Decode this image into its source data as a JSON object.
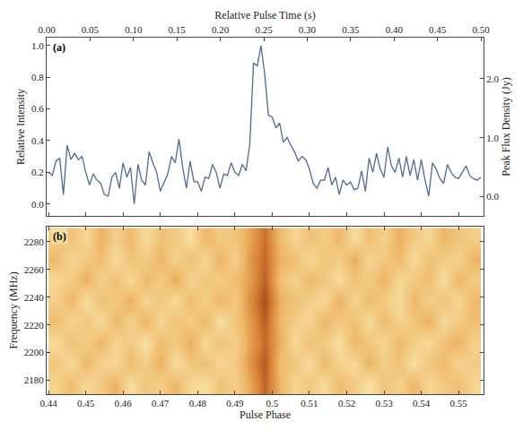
{
  "chart_data": [
    {
      "type": "line",
      "label": "(a)",
      "x_title": "Pulse Phase",
      "y_title": "Relative Intensity",
      "y2_title": "Peak Flux Density (Jy)",
      "top_title": "Relative Pulse Time (s)",
      "color": "#4e6a96",
      "x": [
        0.44,
        0.441,
        0.442,
        0.443,
        0.444,
        0.445,
        0.446,
        0.447,
        0.448,
        0.449,
        0.45,
        0.451,
        0.452,
        0.453,
        0.454,
        0.455,
        0.456,
        0.457,
        0.458,
        0.459,
        0.46,
        0.461,
        0.462,
        0.463,
        0.464,
        0.465,
        0.466,
        0.467,
        0.468,
        0.469,
        0.47,
        0.471,
        0.472,
        0.473,
        0.474,
        0.475,
        0.476,
        0.477,
        0.478,
        0.479,
        0.48,
        0.481,
        0.482,
        0.483,
        0.484,
        0.485,
        0.486,
        0.487,
        0.488,
        0.489,
        0.49,
        0.491,
        0.492,
        0.493,
        0.494,
        0.495,
        0.496,
        0.497,
        0.498,
        0.499,
        0.5,
        0.501,
        0.502,
        0.503,
        0.504,
        0.505,
        0.506,
        0.507,
        0.508,
        0.509,
        0.51,
        0.511,
        0.512,
        0.513,
        0.514,
        0.515,
        0.516,
        0.517,
        0.518,
        0.519,
        0.52,
        0.521,
        0.522,
        0.523,
        0.524,
        0.525,
        0.526,
        0.527,
        0.528,
        0.529,
        0.53,
        0.531,
        0.532,
        0.533,
        0.534,
        0.535,
        0.536,
        0.537,
        0.538,
        0.539,
        0.54,
        0.541,
        0.542,
        0.543,
        0.544,
        0.545,
        0.546,
        0.547,
        0.548,
        0.549,
        0.55,
        0.551,
        0.552,
        0.553,
        0.554,
        0.555,
        0.556
      ],
      "values": [
        0.2,
        0.18,
        0.27,
        0.29,
        0.06,
        0.37,
        0.28,
        0.32,
        0.28,
        0.3,
        0.2,
        0.12,
        0.19,
        0.15,
        0.13,
        0.06,
        0.05,
        0.17,
        0.2,
        0.1,
        0.26,
        0.17,
        0.23,
        0.0,
        0.25,
        0.15,
        0.12,
        0.33,
        0.26,
        0.2,
        0.08,
        0.13,
        0.19,
        0.3,
        0.26,
        0.41,
        0.23,
        0.1,
        0.27,
        0.14,
        0.14,
        0.08,
        0.17,
        0.16,
        0.25,
        0.2,
        0.1,
        0.19,
        0.18,
        0.26,
        0.2,
        0.18,
        0.25,
        0.21,
        0.38,
        0.89,
        0.87,
        1.0,
        0.82,
        0.56,
        0.55,
        0.48,
        0.51,
        0.39,
        0.42,
        0.37,
        0.33,
        0.27,
        0.3,
        0.28,
        0.22,
        0.13,
        0.1,
        0.15,
        0.15,
        0.23,
        0.12,
        0.17,
        0.06,
        0.15,
        0.12,
        0.14,
        0.09,
        0.1,
        0.21,
        0.08,
        0.29,
        0.2,
        0.32,
        0.22,
        0.17,
        0.36,
        0.24,
        0.2,
        0.29,
        0.17,
        0.3,
        0.18,
        0.28,
        0.15,
        0.28,
        0.15,
        0.05,
        0.26,
        0.22,
        0.16,
        0.13,
        0.25,
        0.2,
        0.17,
        0.16,
        0.2,
        0.24,
        0.18,
        0.16,
        0.15,
        0.17
      ],
      "xlim": [
        0.4395,
        0.5567
      ],
      "xticks": [
        0.44,
        0.45,
        0.46,
        0.47,
        0.48,
        0.49,
        0.5,
        0.51,
        0.52,
        0.53,
        0.54,
        0.55
      ],
      "ylim": [
        -0.075,
        1.05
      ],
      "yticks": [
        {
          "value": 0,
          "label": "0.0"
        },
        {
          "value": 0.2,
          "label": "0.2"
        },
        {
          "value": 0.4,
          "label": "0.4"
        },
        {
          "value": 0.6,
          "label": "0.6"
        },
        {
          "value": 0.8,
          "label": "0.8"
        },
        {
          "value": 1,
          "label": "1.0"
        }
      ],
      "y2lim": [
        -0.33,
        2.7
      ],
      "y2ticks": [
        {
          "value": 0,
          "label": "0.0"
        },
        {
          "value": 1,
          "label": "1.0"
        },
        {
          "value": 2,
          "label": "2.0"
        }
      ],
      "top_lim": [
        0,
        0.503
      ],
      "top_ticks": [
        {
          "value": 0,
          "label": "0.00"
        },
        {
          "value": 0.05,
          "label": "0.05"
        },
        {
          "value": 0.1,
          "label": "0.10"
        },
        {
          "value": 0.15,
          "label": "0.15"
        },
        {
          "value": 0.2,
          "label": "0.20"
        },
        {
          "value": 0.25,
          "label": "0.25"
        },
        {
          "value": 0.3,
          "label": "0.30"
        },
        {
          "value": 0.35,
          "label": "0.35"
        },
        {
          "value": 0.4,
          "label": "0.40"
        },
        {
          "value": 0.45,
          "label": "0.45"
        },
        {
          "value": 0.5,
          "label": "0.50"
        }
      ]
    },
    {
      "type": "heatmap",
      "label": "(b)",
      "x_title": "Pulse Phase",
      "y_title": "Frequency (MHz)",
      "x": [
        0.442,
        0.446,
        0.45,
        0.454,
        0.458,
        0.462,
        0.466,
        0.47,
        0.474,
        0.478,
        0.482,
        0.486,
        0.49,
        0.494,
        0.498,
        0.502,
        0.506,
        0.51,
        0.514,
        0.518,
        0.522,
        0.526,
        0.53,
        0.534,
        0.538,
        0.542,
        0.546,
        0.55,
        0.554
      ],
      "y": [
        2177.5,
        2192.5,
        2207.5,
        2222.5,
        2237.5,
        2252.5,
        2267.5,
        2282.5
      ],
      "z": [
        [
          0.42,
          0.55,
          0.38,
          0.47,
          0.6,
          0.35,
          0.5,
          0.44,
          0.58,
          0.4,
          0.36,
          0.52,
          0.45,
          0.62,
          0.82,
          0.58,
          0.41,
          0.49,
          0.37,
          0.55,
          0.46,
          0.33,
          0.51,
          0.43,
          0.59,
          0.39,
          0.48,
          0.54,
          0.4
        ],
        [
          0.5,
          0.37,
          0.58,
          0.43,
          0.39,
          0.56,
          0.44,
          0.61,
          0.35,
          0.49,
          0.53,
          0.4,
          0.47,
          0.68,
          0.85,
          0.55,
          0.5,
          0.36,
          0.57,
          0.42,
          0.38,
          0.6,
          0.45,
          0.52,
          0.34,
          0.5,
          0.56,
          0.41,
          0.47
        ],
        [
          0.36,
          0.52,
          0.45,
          0.59,
          0.41,
          0.48,
          0.33,
          0.55,
          0.47,
          0.62,
          0.38,
          0.51,
          0.44,
          0.64,
          0.8,
          0.61,
          0.39,
          0.53,
          0.46,
          0.35,
          0.58,
          0.49,
          0.4,
          0.57,
          0.45,
          0.37,
          0.52,
          0.6,
          0.43
        ],
        [
          0.55,
          0.41,
          0.49,
          0.36,
          0.57,
          0.43,
          0.6,
          0.39,
          0.52,
          0.45,
          0.58,
          0.34,
          0.5,
          0.66,
          0.84,
          0.57,
          0.46,
          0.4,
          0.59,
          0.48,
          0.53,
          0.37,
          0.56,
          0.42,
          0.5,
          0.61,
          0.38,
          0.47,
          0.54
        ],
        [
          0.44,
          0.58,
          0.35,
          0.53,
          0.47,
          0.62,
          0.4,
          0.5,
          0.37,
          0.56,
          0.43,
          0.59,
          0.48,
          0.7,
          0.88,
          0.6,
          0.53,
          0.44,
          0.38,
          0.61,
          0.41,
          0.55,
          0.46,
          0.36,
          0.58,
          0.44,
          0.51,
          0.39,
          0.57
        ],
        [
          0.39,
          0.47,
          0.61,
          0.42,
          0.54,
          0.38,
          0.57,
          0.46,
          0.63,
          0.41,
          0.5,
          0.45,
          0.55,
          0.65,
          0.83,
          0.54,
          0.42,
          0.58,
          0.49,
          0.37,
          0.52,
          0.46,
          0.6,
          0.4,
          0.48,
          0.55,
          0.35,
          0.59,
          0.45
        ],
        [
          0.57,
          0.4,
          0.48,
          0.55,
          0.36,
          0.51,
          0.45,
          0.59,
          0.42,
          0.53,
          0.39,
          0.6,
          0.43,
          0.67,
          0.81,
          0.59,
          0.55,
          0.38,
          0.51,
          0.44,
          0.62,
          0.4,
          0.49,
          0.56,
          0.37,
          0.53,
          0.46,
          0.42,
          0.6
        ],
        [
          0.46,
          0.53,
          0.39,
          0.6,
          0.44,
          0.56,
          0.37,
          0.52,
          0.48,
          0.35,
          0.58,
          0.47,
          0.51,
          0.63,
          0.79,
          0.56,
          0.4,
          0.52,
          0.45,
          0.57,
          0.36,
          0.54,
          0.43,
          0.61,
          0.47,
          0.39,
          0.58,
          0.5,
          0.44
        ]
      ],
      "xlim": [
        0.4395,
        0.5567
      ],
      "xticks": [
        0.44,
        0.45,
        0.46,
        0.47,
        0.48,
        0.49,
        0.5,
        0.51,
        0.52,
        0.53,
        0.54,
        0.55
      ],
      "ylim": [
        2170,
        2291
      ],
      "yticks": [
        2180,
        2200,
        2220,
        2240,
        2260,
        2280
      ]
    }
  ]
}
